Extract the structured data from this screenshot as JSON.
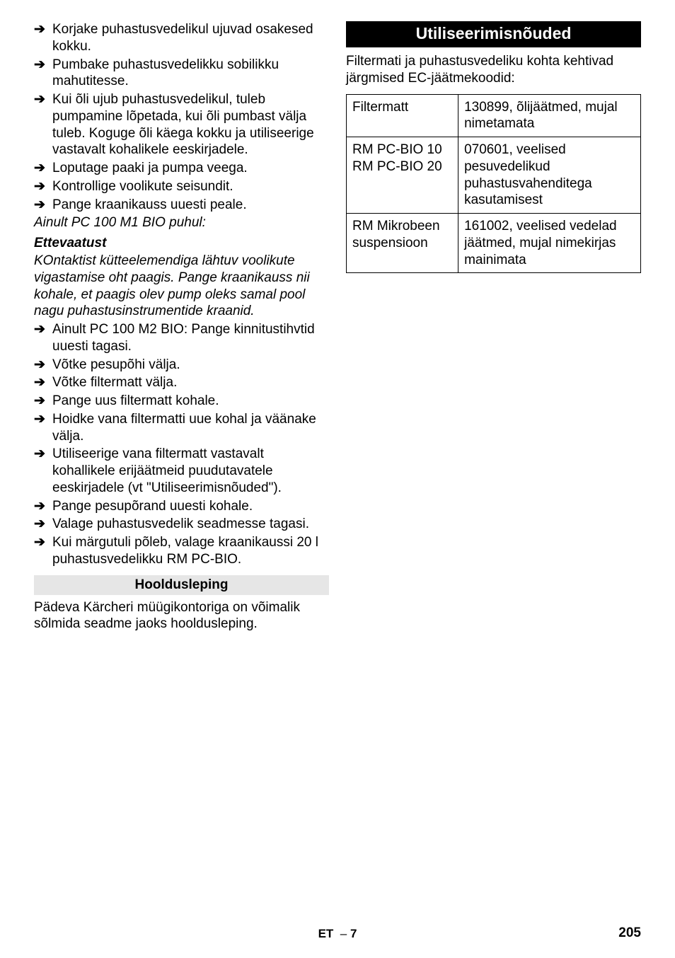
{
  "left": {
    "bullets1": [
      "Korjake puhastusvedelikul ujuvad osakesed kokku.",
      "Pumbake puhastusvedelikku sobilikku mahutitesse.",
      "Kui õli ujub puhastusvedelikul, tuleb pumpamine lõpetada, kui õli pumbast välja tuleb. Koguge õli käega kokku ja utiliseerige vastavalt kohalikele eeskirjadele.",
      "Loputage paaki ja pumpa veega.",
      "Kontrollige voolikute seisundit.",
      "Pange kraanikauss uuesti peale."
    ],
    "onlyLine": "Ainult PC 100 M1 BIO puhul:",
    "caution": "Ettevaatust",
    "cautionPara": "KOntaktist kütteelemendiga lähtuv voolikute vigastamise oht paagis. Pange kraanikauss nii kohale, et paagis olev pump oleks samal pool nagu puhastusinstrumentide kraanid.",
    "bullets2": [
      "Ainult PC 100 M2 BIO: Pange kinnitustihvtid uuesti tagasi.",
      "Võtke pesupõhi välja.",
      "Võtke filtermatt välja.",
      "Pange uus filtermatt kohale.",
      "Hoidke vana filtermatti uue kohal ja väänake välja.",
      "Utiliseerige vana filtermatt vastavalt kohallikele erijäätmeid puudutavatele eeskirjadele (vt \"Utiliseerimisnõuded\").",
      "Pange pesupõrand uuesti kohale.",
      "Valage puhastusvedelik seadmesse tagasi.",
      "Kui märgutuli põleb, valage kraanikaussi 20 l puhastusvedelikku RM PC-BIO."
    ],
    "subHeading": "Hooldusleping",
    "subPara": "Pädeva Kärcheri müügikontoriga on võimalik sõlmida seadme jaoks hooldusleping."
  },
  "right": {
    "heading": "Utiliseerimisnõuded",
    "intro": "Filtermati ja puhastusvedeliku kohta kehtivad järgmised EC-jäätmekoodid:",
    "rows": [
      {
        "label": "Filtermatt",
        "value": "130899, õlijäätmed, mujal nimetamata"
      },
      {
        "label": "RM PC-BIO 10\nRM PC-BIO 20",
        "value": "070601, veelised pesuvedelikud puhastusvahenditega kasutamisest"
      },
      {
        "label": "RM Mikrobeen suspensioon",
        "value": "161002, veelised vedelad jäätmed, mujal nimekirjas mainimata"
      }
    ]
  },
  "footer": {
    "lang": "ET",
    "dash": "–",
    "page": "7",
    "num": "205"
  }
}
